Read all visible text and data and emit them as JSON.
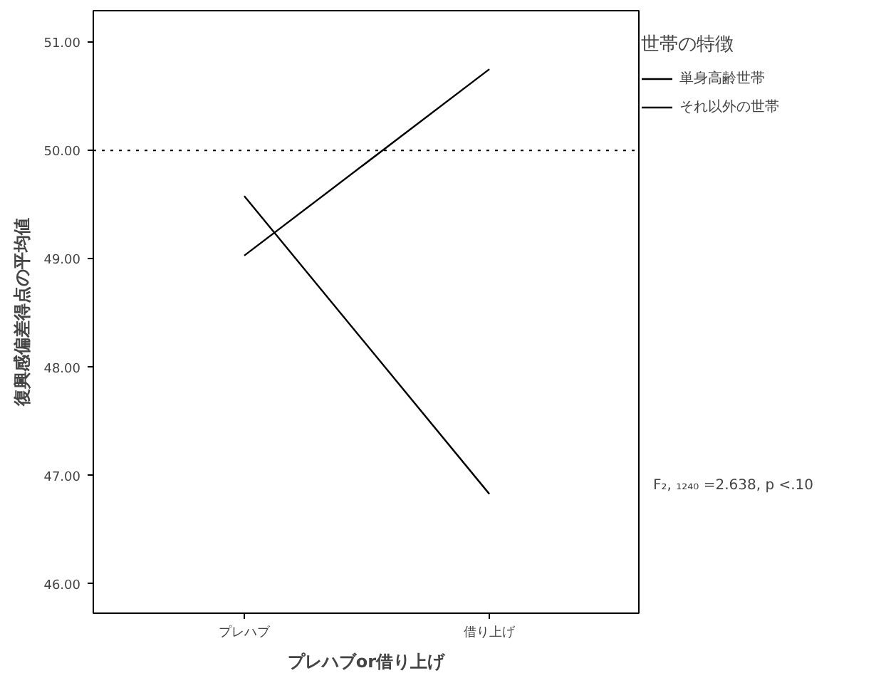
{
  "chart_data": {
    "type": "line",
    "xlabel": "プレハブor借り上げ",
    "ylabel": "復興感偏差得点の平均値",
    "legend_title": "世帯の特徴",
    "categories": [
      "プレハブ",
      "借り上げ"
    ],
    "series": [
      {
        "name": "単身高齢世帯",
        "color": "#000000",
        "values": [
          49.03,
          50.75
        ]
      },
      {
        "name": "それ以外の世帯",
        "color": "#000000",
        "values": [
          49.58,
          46.83
        ]
      }
    ],
    "ylim": [
      45.73,
      51.29
    ],
    "yticks": [
      {
        "value": 46,
        "label": "46.00"
      },
      {
        "value": 47,
        "label": "47.00"
      },
      {
        "value": 48,
        "label": "48.00"
      },
      {
        "value": 49,
        "label": "49.00"
      },
      {
        "value": 50,
        "label": "50.00"
      },
      {
        "value": 51,
        "label": "51.00"
      }
    ],
    "ref_lines": [
      {
        "axis": "y",
        "value": 50,
        "line_style": "dotted",
        "color": "#000000"
      }
    ],
    "annotations": [
      "F₂, ₁₂₄₀ =2.638, p <.10"
    ],
    "legend": "top right",
    "grid": false,
    "marker": "none",
    "line_style": "solid"
  }
}
